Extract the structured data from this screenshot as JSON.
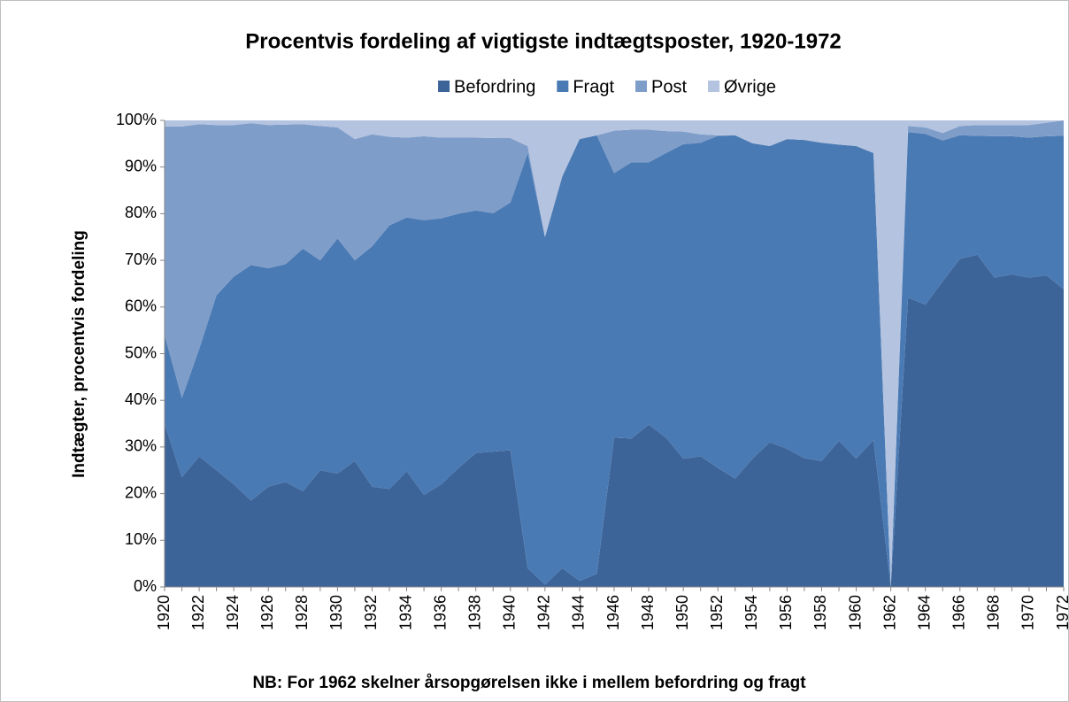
{
  "chart_data": {
    "type": "stacked_area",
    "title": "Procentvis fordeling af vigtigste indtægtsposter, 1920-1972",
    "y_label": "Indtægter, procentvis fordeling",
    "note": "NB: For 1962 skelner årsopgørelsen ikke i mellem befordring og fragt",
    "legend": "top",
    "x": [
      1920,
      1921,
      1922,
      1923,
      1924,
      1925,
      1926,
      1927,
      1928,
      1929,
      1930,
      1931,
      1932,
      1933,
      1934,
      1935,
      1936,
      1937,
      1938,
      1939,
      1940,
      1941,
      1942,
      1943,
      1944,
      1945,
      1946,
      1947,
      1948,
      1949,
      1950,
      1951,
      1952,
      1953,
      1954,
      1955,
      1956,
      1957,
      1958,
      1959,
      1960,
      1961,
      1962,
      1963,
      1964,
      1965,
      1966,
      1967,
      1968,
      1969,
      1970,
      1971,
      1972
    ],
    "xlim": [
      1920,
      1972
    ],
    "xticks": [
      1920,
      1922,
      1924,
      1926,
      1928,
      1930,
      1932,
      1934,
      1936,
      1938,
      1940,
      1942,
      1944,
      1946,
      1948,
      1950,
      1952,
      1954,
      1956,
      1958,
      1960,
      1962,
      1964,
      1966,
      1968,
      1970,
      1972
    ],
    "ylim": [
      0,
      100
    ],
    "yticks": [
      {
        "value": 0,
        "label": "0%"
      },
      {
        "value": 10,
        "label": "10%"
      },
      {
        "value": 20,
        "label": "20%"
      },
      {
        "value": 30,
        "label": "30%"
      },
      {
        "value": 40,
        "label": "40%"
      },
      {
        "value": 50,
        "label": "50%"
      },
      {
        "value": 60,
        "label": "60%"
      },
      {
        "value": 70,
        "label": "70%"
      },
      {
        "value": 80,
        "label": "80%"
      },
      {
        "value": 90,
        "label": "90%"
      },
      {
        "value": 100,
        "label": "100%"
      }
    ],
    "series": [
      {
        "name": "Befordring",
        "color": "#3d6498",
        "values": [
          35,
          23.5,
          28,
          25,
          22,
          18.5,
          21.5,
          22.5,
          20.5,
          25,
          24.3,
          27,
          21.5,
          21,
          24.8,
          19.7,
          22,
          25.5,
          28.7,
          29,
          29.3,
          4,
          0.5,
          4,
          1.3,
          2.8,
          32,
          31.8,
          34.8,
          32,
          27.5,
          28,
          25.5,
          23.2,
          27.5,
          31,
          29.6,
          27.6,
          27,
          31.3,
          27.5,
          31.5,
          0,
          62,
          60.5,
          65.5,
          70.3,
          71.2,
          66.3,
          67,
          66.3,
          66.8,
          63.8
        ]
      },
      {
        "name": "Fragt",
        "color": "#4a7ab4",
        "values": [
          19,
          17,
          23,
          37.5,
          44.5,
          50.5,
          46.8,
          46.7,
          52,
          45,
          50.4,
          43,
          51.5,
          56.5,
          54.4,
          58.9,
          57,
          54.5,
          52,
          51.1,
          53.1,
          89,
          74.5,
          84,
          94.7,
          94,
          56.7,
          59.2,
          56.2,
          61,
          67.4,
          67.2,
          71.2,
          73.6,
          67.6,
          63.5,
          66.4,
          68.2,
          68.2,
          63.5,
          67,
          61.5,
          0,
          35.5,
          36.6,
          30.2,
          26.5,
          25.5,
          30.3,
          29.6,
          30,
          29.8,
          32.9
        ]
      },
      {
        "name": "Post",
        "color": "#7f9dc9",
        "values": [
          44.7,
          58.2,
          48.2,
          36.5,
          32.5,
          30.4,
          30.7,
          29.9,
          26.7,
          28.8,
          23.8,
          26,
          24,
          19,
          17.1,
          18,
          17.3,
          16.3,
          15.6,
          16.1,
          13.8,
          1.5,
          0,
          0,
          0,
          0,
          9.1,
          7,
          7,
          4.7,
          2.7,
          1.8,
          0.1,
          0,
          0,
          0,
          0,
          0,
          0,
          0,
          0,
          0,
          0,
          1.3,
          1.4,
          1.6,
          2,
          2.3,
          2.4,
          2.4,
          2.7,
          2.9,
          3.3
        ]
      },
      {
        "name": "Øvrige",
        "color": "#b4c3df",
        "values": [
          1.3,
          1.3,
          0.8,
          1,
          1,
          0.6,
          1,
          0.9,
          0.8,
          1.2,
          1.5,
          4,
          3,
          3.5,
          3.7,
          3.4,
          3.7,
          3.7,
          3.7,
          3.8,
          3.8,
          5.5,
          25,
          12,
          4,
          3.2,
          2.2,
          2,
          2,
          2.3,
          2.4,
          3,
          3.2,
          3.2,
          4.9,
          5.5,
          4,
          4.2,
          4.8,
          5.2,
          5.5,
          7,
          100,
          1.2,
          1.5,
          2.7,
          1.2,
          1,
          1,
          1,
          1,
          0.5,
          0
        ]
      }
    ]
  }
}
